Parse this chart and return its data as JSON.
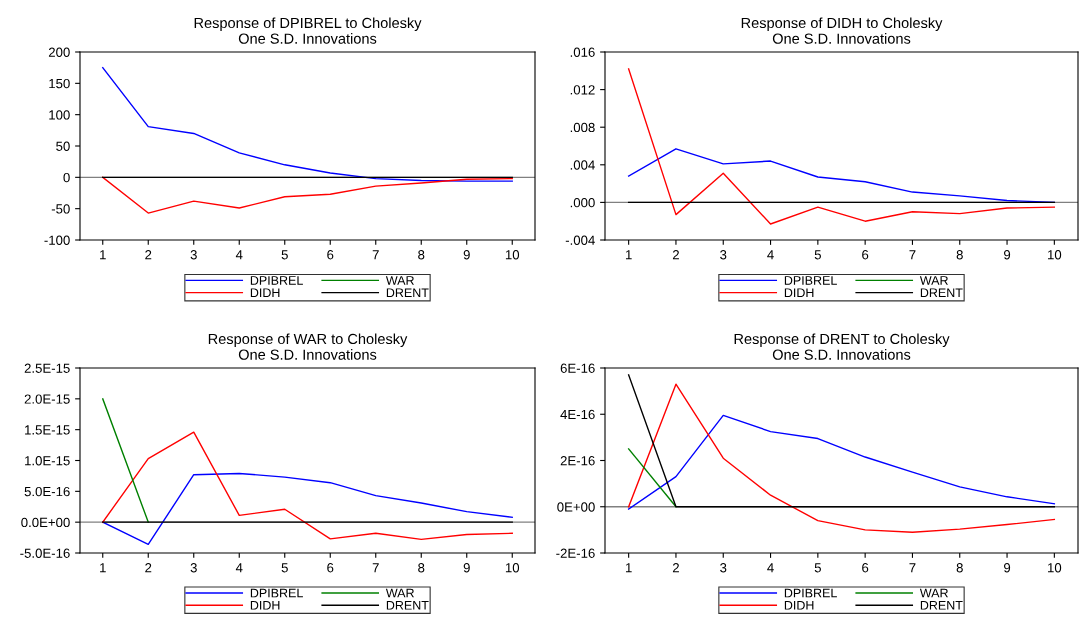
{
  "chart_data": [
    {
      "type": "line",
      "title": "Response of DPIBREL to Cholesky\nOne S.D. Innovations",
      "categories": [
        "1",
        "2",
        "3",
        "4",
        "5",
        "6",
        "7",
        "8",
        "9",
        "10"
      ],
      "ylim": [
        -100,
        200
      ],
      "yticks": [
        -100,
        -50,
        0,
        50,
        100,
        150,
        200
      ],
      "grid": false,
      "legend": "bottom",
      "ref_lines": [
        {
          "axis": "y",
          "value": 0,
          "color": "#808080"
        }
      ],
      "series": [
        {
          "name": "DPIBREL",
          "color": "#0000ff",
          "values": [
            175,
            81,
            70,
            39,
            20,
            7,
            -2,
            -5,
            -6,
            -6
          ]
        },
        {
          "name": "DIDH",
          "color": "#ff0000",
          "values": [
            0,
            -57,
            -38,
            -49,
            -31,
            -27,
            -14,
            -9,
            -3,
            -2
          ]
        },
        {
          "name": "WAR",
          "color": "#008000",
          "values": [
            null,
            null,
            null,
            null,
            null,
            null,
            null,
            null,
            null,
            null
          ]
        },
        {
          "name": "DRENT",
          "color": "#000000",
          "values": [
            0,
            0,
            0,
            0,
            0,
            0,
            0,
            0,
            0,
            0
          ]
        }
      ]
    },
    {
      "type": "line",
      "title": "Response of DIDH to Cholesky\nOne S.D. Innovations",
      "categories": [
        "1",
        "2",
        "3",
        "4",
        "5",
        "6",
        "7",
        "8",
        "9",
        "10"
      ],
      "ylim": [
        -0.004,
        0.016
      ],
      "yticks": [
        {
          "value": -0.004,
          "label": "-.004"
        },
        {
          "value": 0,
          "label": ".000"
        },
        {
          "value": 0.004,
          "label": ".004"
        },
        {
          "value": 0.008,
          "label": ".008"
        },
        {
          "value": 0.012,
          "label": ".012"
        },
        {
          "value": 0.016,
          "label": ".016"
        }
      ],
      "grid": false,
      "legend": "bottom",
      "ref_lines": [
        {
          "axis": "y",
          "value": 0,
          "color": "#808080"
        }
      ],
      "series": [
        {
          "name": "DPIBREL",
          "color": "#0000ff",
          "values": [
            0.0028,
            0.0057,
            0.0041,
            0.0044,
            0.0027,
            0.0022,
            0.0011,
            0.0007,
            0.0002,
            0.0
          ]
        },
        {
          "name": "DIDH",
          "color": "#ff0000",
          "values": [
            0.0142,
            -0.0013,
            0.0031,
            -0.0023,
            -0.0005,
            -0.002,
            -0.001,
            -0.0012,
            -0.0006,
            -0.0005
          ]
        },
        {
          "name": "WAR",
          "color": "#008000",
          "values": [
            null,
            null,
            null,
            null,
            null,
            null,
            null,
            null,
            null,
            null
          ]
        },
        {
          "name": "DRENT",
          "color": "#000000",
          "values": [
            0,
            0,
            0,
            0,
            0,
            0,
            0,
            0,
            0,
            0
          ]
        }
      ]
    },
    {
      "type": "line",
      "title": "Response of WAR to Cholesky\nOne S.D. Innovations",
      "categories": [
        "1",
        "2",
        "3",
        "4",
        "5",
        "6",
        "7",
        "8",
        "9",
        "10"
      ],
      "ylim": [
        -5e-16,
        2.5e-15
      ],
      "yticks": [
        {
          "value": -5e-16,
          "label": "-5.0E-16"
        },
        {
          "value": 0,
          "label": "0.0E+00"
        },
        {
          "value": 5e-16,
          "label": "5.0E-16"
        },
        {
          "value": 1e-15,
          "label": "1.0E-15"
        },
        {
          "value": 1.5e-15,
          "label": "1.5E-15"
        },
        {
          "value": 2e-15,
          "label": "2.0E-15"
        },
        {
          "value": 2.5e-15,
          "label": "2.5E-15"
        }
      ],
      "grid": false,
      "legend": "bottom",
      "ref_lines": [
        {
          "axis": "y",
          "value": 0,
          "color": "#808080"
        }
      ],
      "series": [
        {
          "name": "DPIBREL",
          "color": "#0000ff",
          "values": [
            0,
            -3.6e-16,
            7.7e-16,
            7.9e-16,
            7.3e-16,
            6.4e-16,
            4.3e-16,
            3.1e-16,
            1.7e-16,
            8e-17
          ]
        },
        {
          "name": "DIDH",
          "color": "#ff0000",
          "values": [
            0,
            1.03e-15,
            1.46e-15,
            1.1e-16,
            2.1e-16,
            -2.7e-16,
            -1.8e-16,
            -2.8e-16,
            -2e-16,
            -1.8e-16
          ]
        },
        {
          "name": "WAR",
          "color": "#008000",
          "values": [
            2e-15,
            0,
            null,
            null,
            null,
            null,
            null,
            null,
            null,
            null
          ]
        },
        {
          "name": "DRENT",
          "color": "#000000",
          "values": [
            0,
            0,
            0,
            0,
            0,
            0,
            0,
            0,
            0,
            0
          ]
        }
      ]
    },
    {
      "type": "line",
      "title": "Response of DRENT to Cholesky\nOne S.D. Innovations",
      "categories": [
        "1",
        "2",
        "3",
        "4",
        "5",
        "6",
        "7",
        "8",
        "9",
        "10"
      ],
      "ylim": [
        -2e-16,
        6e-16
      ],
      "yticks": [
        {
          "value": -2e-16,
          "label": "-2E-16"
        },
        {
          "value": 0,
          "label": "0E+00"
        },
        {
          "value": 2e-16,
          "label": "2E-16"
        },
        {
          "value": 4e-16,
          "label": "4E-16"
        },
        {
          "value": 6e-16,
          "label": "6E-16"
        }
      ],
      "grid": false,
      "legend": "bottom",
      "ref_lines": [
        {
          "axis": "y",
          "value": 0,
          "color": "#808080"
        }
      ],
      "series": [
        {
          "name": "DPIBREL",
          "color": "#0000ff",
          "values": [
            -1e-17,
            1.3e-16,
            3.95e-16,
            3.25e-16,
            2.95e-16,
            2.15e-16,
            1.5e-16,
            8.6e-17,
            4.3e-17,
            1.3e-17
          ]
        },
        {
          "name": "DIDH",
          "color": "#ff0000",
          "values": [
            0,
            5.3e-16,
            2.1e-16,
            5e-17,
            -6e-17,
            -1e-16,
            -1.1e-16,
            -9.7e-17,
            -7.7e-17,
            -5.5e-17
          ]
        },
        {
          "name": "WAR",
          "color": "#008000",
          "values": [
            2.5e-16,
            0,
            null,
            null,
            null,
            null,
            null,
            null,
            null,
            null
          ]
        },
        {
          "name": "DRENT",
          "color": "#000000",
          "values": [
            5.7e-16,
            0,
            0,
            0,
            0,
            0,
            0,
            0,
            0,
            0
          ]
        }
      ]
    }
  ]
}
